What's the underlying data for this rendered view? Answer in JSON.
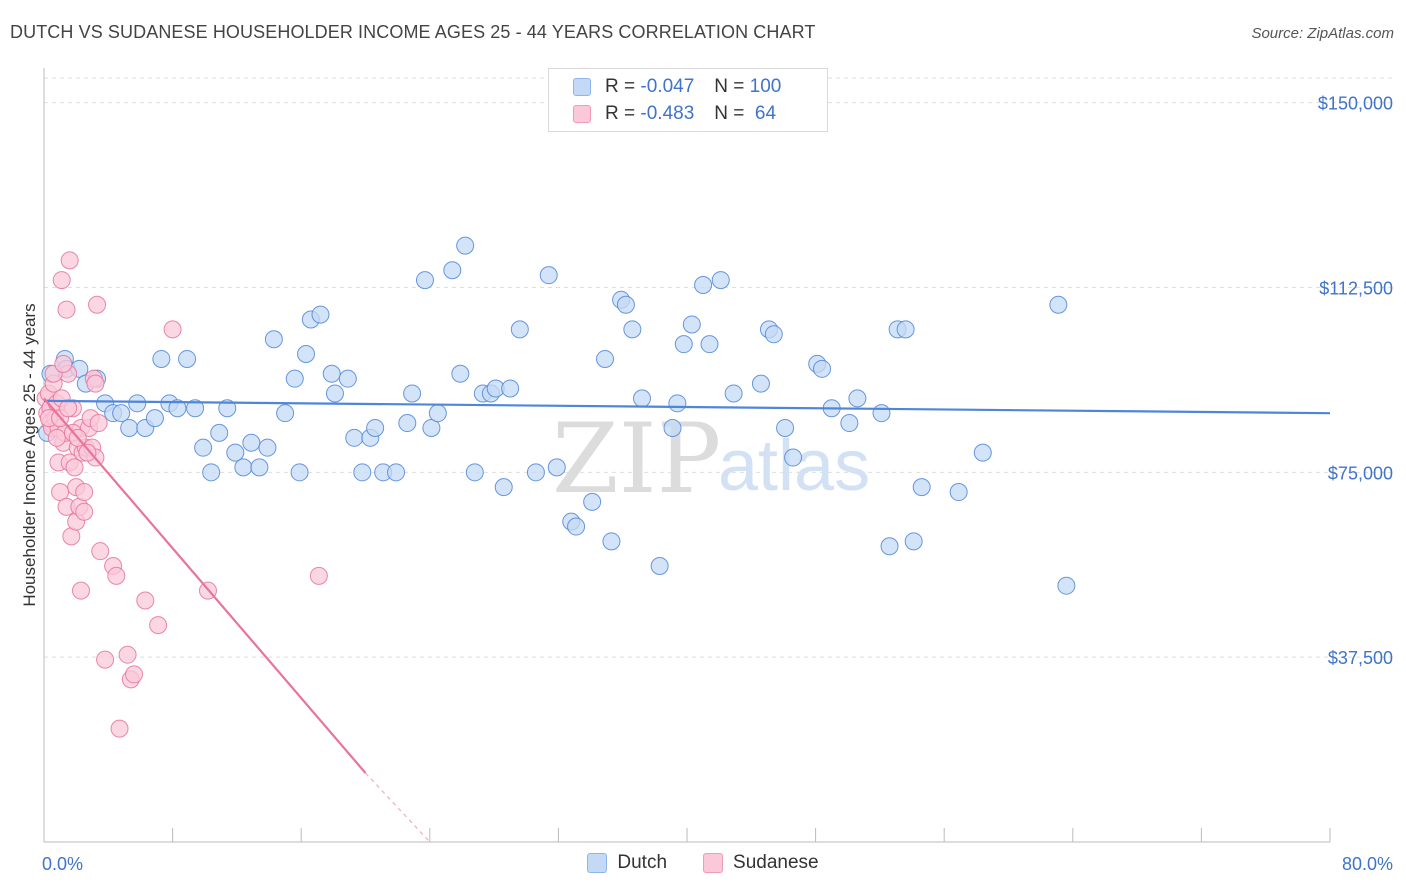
{
  "title": "DUTCH VS SUDANESE HOUSEHOLDER INCOME AGES 25 - 44 YEARS CORRELATION CHART",
  "source": "Source: ZipAtlas.com",
  "watermark": {
    "zip": "ZIP",
    "atlas": "atlas"
  },
  "legend": {
    "rows": [
      {
        "r_label": "R =",
        "r_value": "-0.047",
        "n_label": "N =",
        "n_value": "100",
        "color": "#8fb6ec",
        "fill": "#c4d9f6"
      },
      {
        "r_label": "R =",
        "r_value": "-0.483",
        "n_label": "N =",
        "n_value": " 64",
        "color": "#f19bb8",
        "fill": "#fac8d9"
      }
    ]
  },
  "bottom_legend": [
    {
      "label": "Dutch",
      "color": "#8fb6ec",
      "fill": "#c4d9f6"
    },
    {
      "label": "Sudanese",
      "color": "#f19bb8",
      "fill": "#fac8d9"
    }
  ],
  "chart_data": {
    "type": "scatter",
    "title": "DUTCH VS SUDANESE HOUSEHOLDER INCOME AGES 25 - 44 YEARS CORRELATION CHART",
    "xlabel": "",
    "ylabel": "Householder Income Ages 25 - 44 years",
    "xlim": [
      0,
      80
    ],
    "ylim": [
      0,
      155000
    ],
    "x_tick_labels": [
      "0.0%",
      "80.0%"
    ],
    "y_ticks": [
      37500,
      75000,
      112500,
      150000
    ],
    "y_tick_labels": [
      "$37,500",
      "$75,000",
      "$112,500",
      "$150,000"
    ],
    "grid": true,
    "series": [
      {
        "name": "Dutch",
        "color": "#4f86d8",
        "fill": "#c4d9f6",
        "trend": {
          "x": [
            0,
            80
          ],
          "y": [
            89500,
            87000
          ]
        },
        "points": [
          [
            0.2,
            83000
          ],
          [
            0.4,
            95000
          ],
          [
            1.3,
            98000
          ],
          [
            1.4,
            96000
          ],
          [
            2.2,
            96000
          ],
          [
            2.6,
            93000
          ],
          [
            3.3,
            94000
          ],
          [
            3.8,
            89000
          ],
          [
            4.3,
            87000
          ],
          [
            4.8,
            87000
          ],
          [
            5.3,
            84000
          ],
          [
            5.8,
            89000
          ],
          [
            6.3,
            84000
          ],
          [
            6.9,
            86000
          ],
          [
            7.3,
            98000
          ],
          [
            7.8,
            89000
          ],
          [
            8.3,
            88000
          ],
          [
            8.9,
            98000
          ],
          [
            9.4,
            88000
          ],
          [
            9.9,
            80000
          ],
          [
            10.4,
            75000
          ],
          [
            10.9,
            83000
          ],
          [
            11.4,
            88000
          ],
          [
            11.9,
            79000
          ],
          [
            12.4,
            76000
          ],
          [
            12.9,
            81000
          ],
          [
            13.4,
            76000
          ],
          [
            13.9,
            80000
          ],
          [
            14.3,
            102000
          ],
          [
            15.0,
            87000
          ],
          [
            15.6,
            94000
          ],
          [
            15.9,
            75000
          ],
          [
            16.3,
            99000
          ],
          [
            16.6,
            106000
          ],
          [
            17.2,
            107000
          ],
          [
            17.9,
            95000
          ],
          [
            18.1,
            91000
          ],
          [
            18.9,
            94000
          ],
          [
            19.3,
            82000
          ],
          [
            19.8,
            75000
          ],
          [
            20.3,
            82000
          ],
          [
            20.6,
            84000
          ],
          [
            21.1,
            75000
          ],
          [
            21.9,
            75000
          ],
          [
            22.6,
            85000
          ],
          [
            22.9,
            91000
          ],
          [
            24.1,
            84000
          ],
          [
            24.5,
            87000
          ],
          [
            23.7,
            114000
          ],
          [
            25.4,
            116000
          ],
          [
            26.2,
            121000
          ],
          [
            25.9,
            95000
          ],
          [
            26.8,
            75000
          ],
          [
            27.3,
            91000
          ],
          [
            27.8,
            91000
          ],
          [
            28.1,
            92000
          ],
          [
            28.6,
            72000
          ],
          [
            29.0,
            92000
          ],
          [
            29.6,
            104000
          ],
          [
            30.6,
            75000
          ],
          [
            31.4,
            115000
          ],
          [
            31.9,
            76000
          ],
          [
            32.8,
            65000
          ],
          [
            33.1,
            64000
          ],
          [
            34.1,
            69000
          ],
          [
            34.9,
            98000
          ],
          [
            35.3,
            61000
          ],
          [
            35.9,
            110000
          ],
          [
            36.2,
            109000
          ],
          [
            36.6,
            104000
          ],
          [
            37.2,
            90000
          ],
          [
            38.3,
            56000
          ],
          [
            39.1,
            84000
          ],
          [
            39.4,
            89000
          ],
          [
            39.8,
            101000
          ],
          [
            40.3,
            105000
          ],
          [
            41.0,
            113000
          ],
          [
            41.4,
            101000
          ],
          [
            42.1,
            114000
          ],
          [
            42.9,
            91000
          ],
          [
            44.6,
            93000
          ],
          [
            45.1,
            104000
          ],
          [
            45.4,
            103000
          ],
          [
            46.1,
            84000
          ],
          [
            46.6,
            78000
          ],
          [
            48.1,
            97000
          ],
          [
            48.4,
            96000
          ],
          [
            49.0,
            88000
          ],
          [
            50.1,
            85000
          ],
          [
            50.6,
            90000
          ],
          [
            52.1,
            87000
          ],
          [
            52.6,
            60000
          ],
          [
            53.1,
            104000
          ],
          [
            53.6,
            104000
          ],
          [
            54.1,
            61000
          ],
          [
            54.6,
            72000
          ],
          [
            56.9,
            71000
          ],
          [
            58.4,
            79000
          ],
          [
            63.1,
            109000
          ],
          [
            63.6,
            52000
          ]
        ]
      },
      {
        "name": "Sudanese",
        "color": "#e8739b",
        "fill": "#fac8d9",
        "trend": {
          "x": [
            0,
            20
          ],
          "y": [
            90000,
            14000
          ]
        },
        "trend_dashed": {
          "x": [
            20,
            24
          ],
          "y": [
            14000,
            0
          ]
        },
        "points": [
          [
            0.1,
            90000
          ],
          [
            0.2,
            87000
          ],
          [
            0.3,
            91000
          ],
          [
            0.4,
            88000
          ],
          [
            0.4,
            85000
          ],
          [
            0.5,
            84000
          ],
          [
            0.6,
            93000
          ],
          [
            0.7,
            86000
          ],
          [
            0.8,
            89000
          ],
          [
            0.9,
            84000
          ],
          [
            0.9,
            77000
          ],
          [
            1.0,
            71000
          ],
          [
            1.1,
            90000
          ],
          [
            1.1,
            114000
          ],
          [
            1.2,
            81000
          ],
          [
            1.3,
            83000
          ],
          [
            1.4,
            68000
          ],
          [
            1.4,
            108000
          ],
          [
            1.5,
            95000
          ],
          [
            1.6,
            118000
          ],
          [
            1.6,
            77000
          ],
          [
            1.7,
            62000
          ],
          [
            1.8,
            88000
          ],
          [
            1.9,
            76000
          ],
          [
            2.0,
            72000
          ],
          [
            2.0,
            65000
          ],
          [
            2.1,
            80000
          ],
          [
            2.2,
            68000
          ],
          [
            2.3,
            84000
          ],
          [
            2.3,
            51000
          ],
          [
            2.4,
            79000
          ],
          [
            2.5,
            71000
          ],
          [
            2.5,
            67000
          ],
          [
            2.6,
            80000
          ],
          [
            2.8,
            84000
          ],
          [
            2.9,
            86000
          ],
          [
            3.0,
            80000
          ],
          [
            3.1,
            94000
          ],
          [
            3.2,
            93000
          ],
          [
            3.2,
            78000
          ],
          [
            3.3,
            109000
          ],
          [
            3.4,
            85000
          ],
          [
            3.5,
            59000
          ],
          [
            3.8,
            37000
          ],
          [
            4.3,
            56000
          ],
          [
            4.5,
            54000
          ],
          [
            4.7,
            23000
          ],
          [
            5.2,
            38000
          ],
          [
            5.4,
            33000
          ],
          [
            5.6,
            34000
          ],
          [
            6.3,
            49000
          ],
          [
            7.1,
            44000
          ],
          [
            8.0,
            104000
          ],
          [
            10.2,
            51000
          ],
          [
            17.1,
            54000
          ],
          [
            0.3,
            86000
          ],
          [
            0.6,
            95000
          ],
          [
            0.8,
            82000
          ],
          [
            1.0,
            86000
          ],
          [
            1.2,
            97000
          ],
          [
            1.5,
            88000
          ],
          [
            1.8,
            83000
          ],
          [
            2.1,
            82000
          ],
          [
            2.7,
            79000
          ]
        ]
      }
    ]
  }
}
